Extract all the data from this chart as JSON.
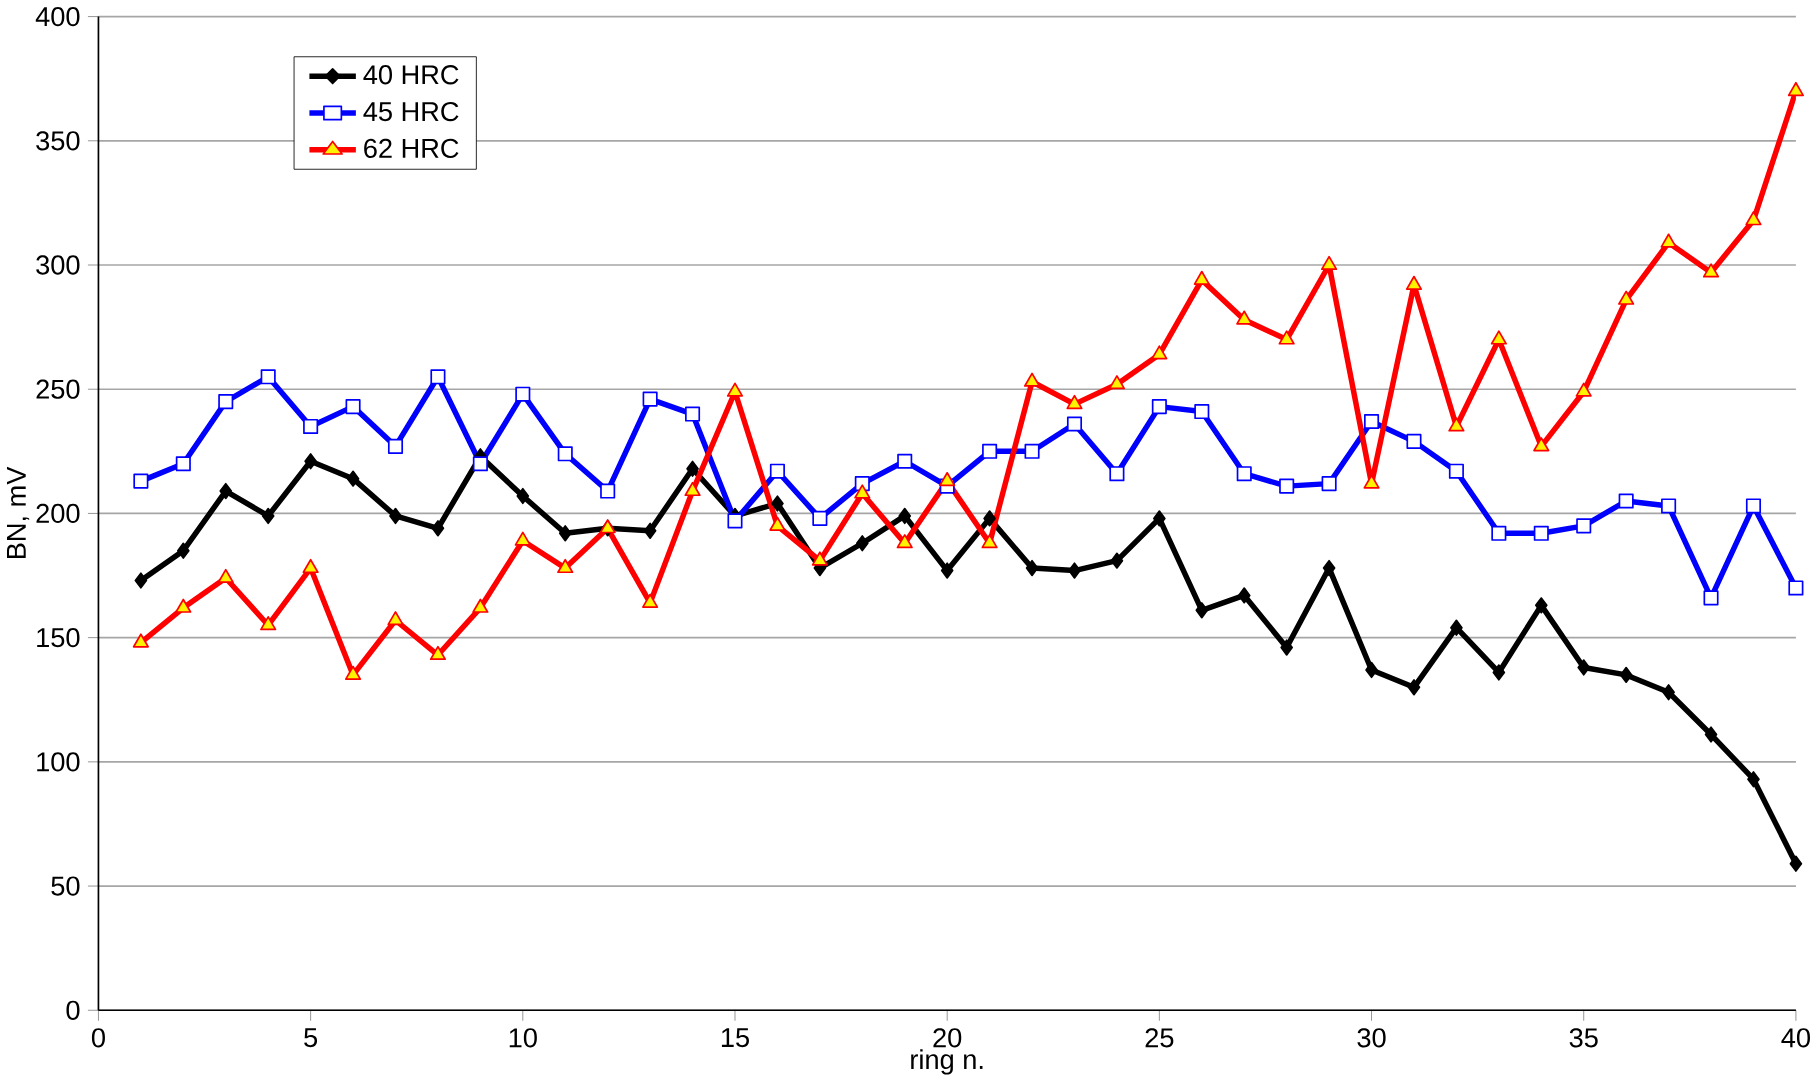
{
  "chart_data": {
    "type": "line",
    "xlabel": "ring n.",
    "ylabel": "BN, mV",
    "x": [
      1,
      2,
      3,
      4,
      5,
      6,
      7,
      8,
      9,
      10,
      11,
      12,
      13,
      14,
      15,
      16,
      17,
      18,
      19,
      20,
      21,
      22,
      23,
      24,
      25,
      26,
      27,
      28,
      29,
      30,
      31,
      32,
      33,
      34,
      35,
      36,
      37,
      38,
      39,
      40
    ],
    "series": [
      {
        "name": "40 HRC",
        "color": "#000000",
        "marker": "diamond",
        "values": [
          173,
          185,
          209,
          199,
          221,
          214,
          199,
          194,
          223,
          207,
          192,
          194,
          193,
          218,
          199,
          204,
          178,
          188,
          199,
          177,
          198,
          178,
          177,
          181,
          198,
          161,
          167,
          146,
          178,
          137,
          130,
          154,
          136,
          163,
          138,
          135,
          128,
          111,
          93,
          59
        ]
      },
      {
        "name": "45 HRC",
        "color": "#0000ff",
        "marker": "square",
        "values": [
          213,
          220,
          245,
          255,
          235,
          243,
          227,
          255,
          220,
          248,
          224,
          209,
          246,
          240,
          197,
          217,
          198,
          212,
          221,
          211,
          225,
          225,
          236,
          216,
          243,
          241,
          216,
          211,
          212,
          237,
          229,
          217,
          192,
          192,
          195,
          205,
          203,
          166,
          203,
          170
        ]
      },
      {
        "name": "62 HRC",
        "color": "#ff0000",
        "marker": "triangle",
        "values": [
          148,
          162,
          174,
          155,
          178,
          135,
          157,
          143,
          162,
          189,
          178,
          194,
          164,
          209,
          249,
          195,
          181,
          208,
          188,
          213,
          188,
          253,
          244,
          252,
          264,
          294,
          278,
          270,
          300,
          212,
          292,
          235,
          270,
          227,
          249,
          286,
          309,
          297,
          318,
          370
        ]
      }
    ],
    "xlim": [
      0,
      40
    ],
    "xticks": [
      0,
      5,
      10,
      15,
      20,
      25,
      30,
      35,
      40
    ],
    "ylim": [
      0,
      400
    ],
    "yticks": [
      0,
      50,
      100,
      150,
      200,
      250,
      300,
      350,
      400
    ],
    "grid": "y",
    "legend": "top left",
    "line_style": "solid"
  }
}
